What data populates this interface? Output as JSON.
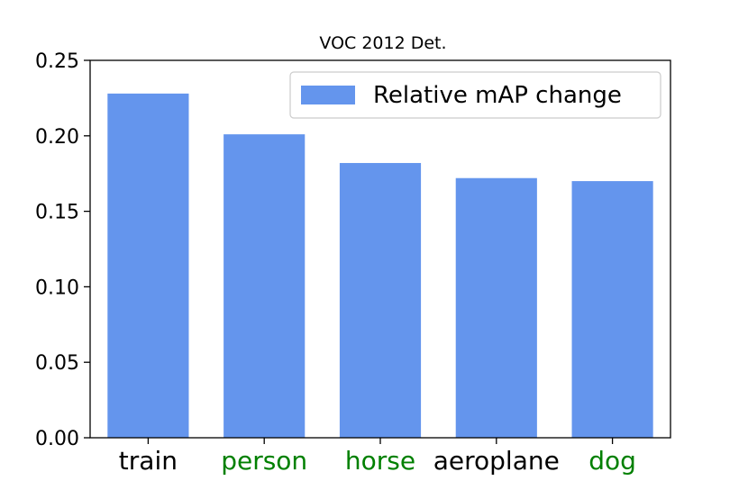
{
  "chart_data": {
    "type": "bar",
    "title": "VOC 2012 Det.",
    "xlabel": "",
    "ylabel": "",
    "categories": [
      "train",
      "person",
      "horse",
      "aeroplane",
      "dog"
    ],
    "category_colors": [
      "#000000",
      "#008000",
      "#008000",
      "#000000",
      "#008000"
    ],
    "series": [
      {
        "name": "Relative mAP change",
        "values": [
          0.228,
          0.201,
          0.182,
          0.172,
          0.17
        ],
        "color": "#6495ED"
      }
    ],
    "ylim": [
      0,
      0.25
    ],
    "yticks": [
      "0.00",
      "0.05",
      "0.10",
      "0.15",
      "0.20",
      "0.25"
    ],
    "grid": false,
    "legend_position": "top-right"
  }
}
